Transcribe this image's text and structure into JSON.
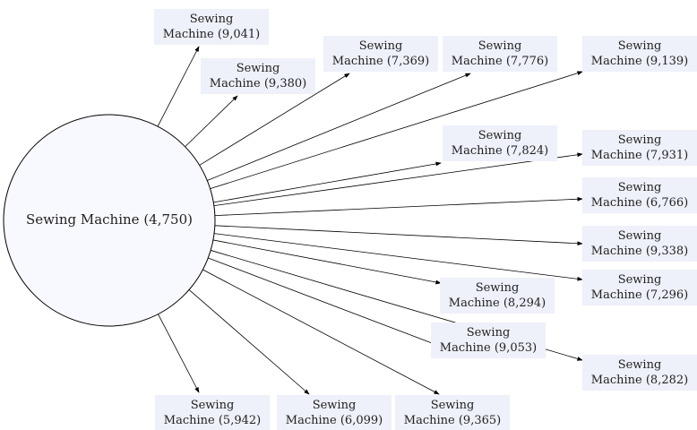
{
  "center": {
    "label": "Sewing Machine (4,750)"
  },
  "nodes": [
    {
      "label": [
        "Sewing",
        "Machine (9,041)"
      ]
    },
    {
      "label": [
        "Sewing",
        "Machine (9,380)"
      ]
    },
    {
      "label": [
        "Sewing",
        "Machine (7,369)"
      ]
    },
    {
      "label": [
        "Sewing",
        "Machine (7,776)"
      ]
    },
    {
      "label": [
        "Sewing",
        "Machine (9,139)"
      ]
    },
    {
      "label": [
        "Sewing",
        "Machine (7,824)"
      ]
    },
    {
      "label": [
        "Sewing",
        "Machine (7,931)"
      ]
    },
    {
      "label": [
        "Sewing",
        "Machine (6,766)"
      ]
    },
    {
      "label": [
        "Sewing",
        "Machine (9,338)"
      ]
    },
    {
      "label": [
        "Sewing",
        "Machine (7,296)"
      ]
    },
    {
      "label": [
        "Sewing",
        "Machine (8,294)"
      ]
    },
    {
      "label": [
        "Sewing",
        "Machine (9,053)"
      ]
    },
    {
      "label": [
        "Sewing",
        "Machine (8,282)"
      ]
    },
    {
      "label": [
        "Sewing",
        "Machine (5,942)"
      ]
    },
    {
      "label": [
        "Sewing",
        "Machine (6,099)"
      ]
    },
    {
      "label": [
        "Sewing",
        "Machine (9,365)"
      ]
    }
  ]
}
